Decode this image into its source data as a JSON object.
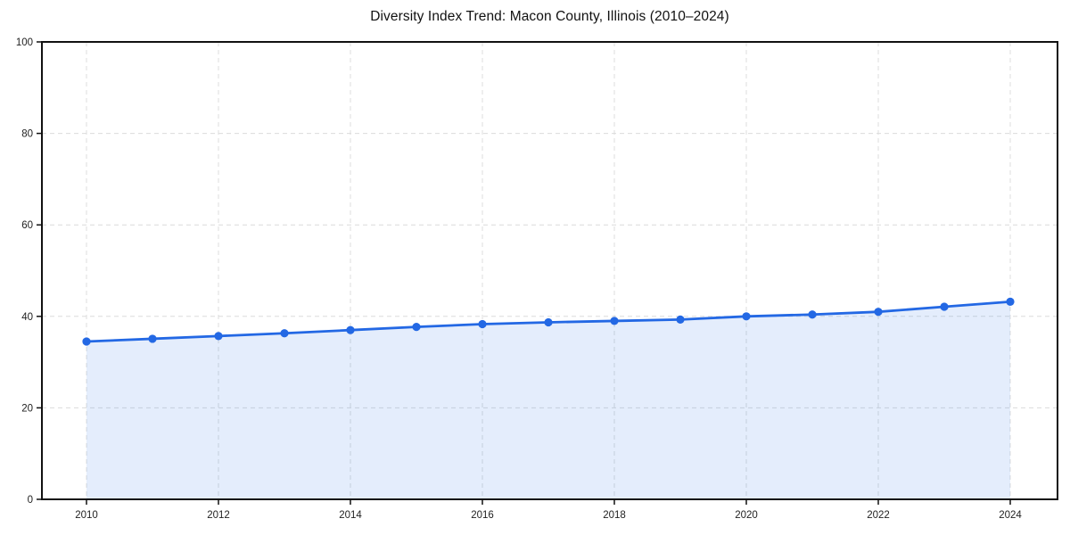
{
  "chart_data": {
    "type": "line",
    "variant": "line-with-area-fill",
    "title": "Diversity Index Trend: Macon County, Illinois (2010–2024)",
    "xlabel": "",
    "ylabel": "",
    "x": [
      2010,
      2011,
      2012,
      2013,
      2014,
      2015,
      2016,
      2017,
      2018,
      2019,
      2020,
      2021,
      2022,
      2023,
      2024
    ],
    "series": [
      {
        "name": "Diversity Index",
        "values": [
          34.5,
          35.1,
          35.7,
          36.3,
          37.0,
          37.7,
          38.3,
          38.7,
          39.0,
          39.3,
          40.0,
          40.4,
          41.0,
          42.1,
          43.2
        ]
      }
    ],
    "xlim": [
      2009.3,
      2024.7
    ],
    "ylim": [
      0,
      100
    ],
    "xticks": [
      2010,
      2012,
      2014,
      2016,
      2018,
      2020,
      2022,
      2024
    ],
    "yticks": [
      0,
      20,
      40,
      60,
      80,
      100
    ],
    "grid": "on",
    "grid_style": "dashed",
    "legend": "none",
    "marker": "circle",
    "colors": {
      "line": "#2368e4",
      "marker": "#2368e4",
      "area_fill": "#2368e4",
      "grid": "#dcdcdc",
      "axis": "#111111",
      "tick_label": "#222222",
      "title": "#111111",
      "background": "#ffffff"
    },
    "area_opacity": 0.12
  }
}
